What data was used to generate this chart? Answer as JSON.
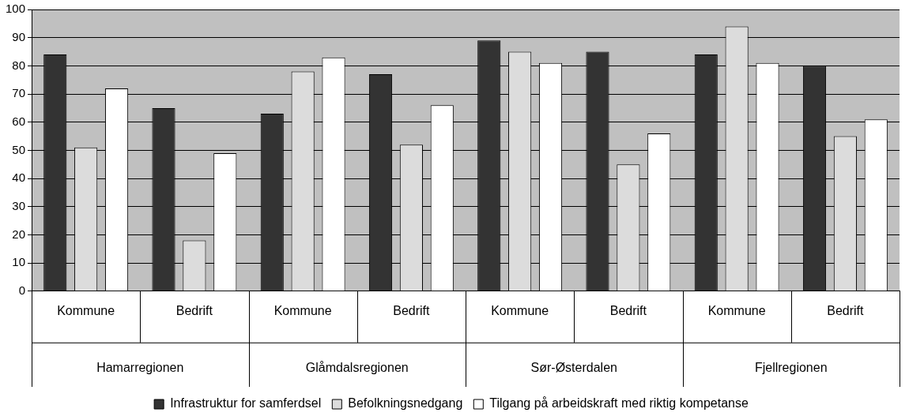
{
  "chart_data": {
    "type": "bar",
    "categories": [
      "Kommune",
      "Bedrift",
      "Kommune",
      "Bedrift",
      "Kommune",
      "Bedrift",
      "Kommune",
      "Bedrift"
    ],
    "annotations": [
      "Hamarregionen",
      "Glåmdalsregionen",
      "Sør-Østerdalen",
      "Fjellregionen"
    ],
    "series": [
      {
        "name": "Infrastruktur for samferdsel",
        "color": "#333333",
        "values": [
          84,
          65,
          63,
          77,
          89,
          85,
          84,
          80
        ]
      },
      {
        "name": "Befolkningsnedgang",
        "color": "#dcdcdc",
        "values": [
          51,
          18,
          78,
          52,
          85,
          45,
          94,
          55
        ]
      },
      {
        "name": "Tilgang på arbeidskraft med riktig kompetanse",
        "color": "#ffffff",
        "values": [
          72,
          49,
          83,
          66,
          81,
          56,
          81,
          61
        ]
      }
    ],
    "ylim": [
      0,
      100
    ],
    "yticks": [
      0,
      10,
      20,
      30,
      40,
      50,
      60,
      70,
      80,
      90,
      100
    ],
    "grid": "y",
    "legend": "bottom"
  }
}
